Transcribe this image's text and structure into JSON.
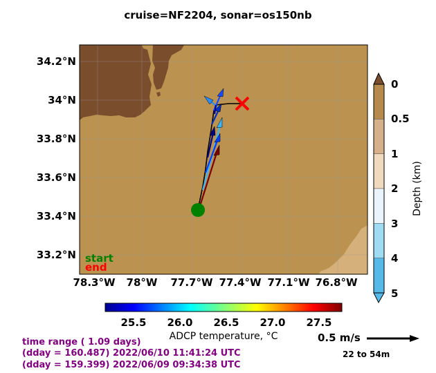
{
  "title": "cruise=NF2204,   sonar=os150nb",
  "lat_ticks": [
    "34.2°N",
    "34°N",
    "33.8°N",
    "33.6°N",
    "33.4°N",
    "33.2°N"
  ],
  "lon_ticks": [
    "78.3°W",
    "78°W",
    "77.7°W",
    "77.4°W",
    "77.1°W",
    "76.8°W"
  ],
  "depth_colorbar": {
    "label": "Depth (km)",
    "ticks": [
      "0",
      "0.5",
      "1",
      "2",
      "3",
      "4",
      "5"
    ],
    "colors": [
      "#b58a4b",
      "#d5b08a",
      "#f1d9bd",
      "#eaf4fa",
      "#9fdbf3",
      "#56b9e8"
    ]
  },
  "temperature_colorbar": {
    "label": "ADCP temperature, °C",
    "ticks": [
      "25.5",
      "26.0",
      "26.5",
      "27.0",
      "27.5"
    ]
  },
  "legend": {
    "start": "start",
    "end": "end",
    "start_color": "#008000",
    "end_color": "#ff0000"
  },
  "info": {
    "line1": "time range ( 1.09 days)",
    "line2": "(dday = 160.487) 2022/06/10 11:41:24 UTC",
    "line3": "(dday = 159.399) 2022/06/09 09:34:38 UTC",
    "color": "#800080"
  },
  "scale": {
    "label": "0.5 m/s",
    "depth_range": "22 to 54m"
  },
  "colors": {
    "land": "#7a4e2d",
    "shelf": "#bb9250",
    "deep": "#d5b07a",
    "track": "#000000",
    "start_marker": "#008000",
    "end_marker": "#ff0000"
  }
}
